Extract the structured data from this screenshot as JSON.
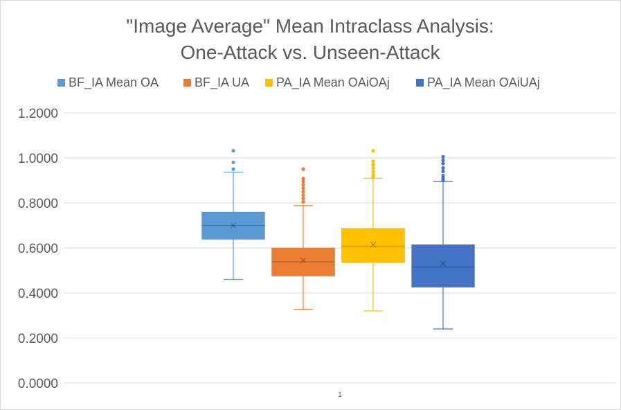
{
  "chart_data": {
    "type": "box",
    "title_lines": [
      "\"Image Average\" Mean Intraclass Analysis:",
      "One-Attack vs. Unseen-Attack"
    ],
    "xlabel": "",
    "ylabel": "",
    "categories": [
      "1"
    ],
    "ylim": [
      0,
      1.2
    ],
    "y_ticks": [
      "0.0000",
      "0.2000",
      "0.4000",
      "0.6000",
      "0.8000",
      "1.0000",
      "1.2000"
    ],
    "y_tick_values": [
      0,
      0.2,
      0.4,
      0.6,
      0.8,
      1.0,
      1.2
    ],
    "grid": true,
    "legend_position": "top",
    "series": [
      {
        "name": "BF_IA Mean OA",
        "color": "#5b9bd5",
        "whisker_low": 0.46,
        "q1": 0.638,
        "median": 0.7,
        "mean": 0.7,
        "q3": 0.76,
        "whisker_high": 0.937,
        "outliers": [
          0.95,
          0.98,
          1.032
        ]
      },
      {
        "name": "BF_IA UA",
        "color": "#ed7d31",
        "whisker_low": 0.327,
        "q1": 0.475,
        "median": 0.538,
        "mean": 0.545,
        "q3": 0.6,
        "whisker_high": 0.788,
        "outliers": [
          0.805,
          0.82,
          0.835,
          0.85,
          0.865,
          0.88,
          0.895,
          0.908,
          0.95
        ]
      },
      {
        "name": "PA_IA Mean OAiOAj",
        "color": "#ffc000",
        "whisker_low": 0.32,
        "q1": 0.535,
        "median": 0.608,
        "mean": 0.615,
        "q3": 0.687,
        "whisker_high": 0.91,
        "outliers": [
          0.915,
          0.925,
          0.94,
          0.955,
          0.97,
          0.985,
          1.032
        ]
      },
      {
        "name": "PA_IA Mean OAiUAj",
        "color": "#4472c4",
        "whisker_low": 0.24,
        "q1": 0.425,
        "median": 0.515,
        "mean": 0.53,
        "q3": 0.615,
        "whisker_high": 0.895,
        "outliers": [
          0.9,
          0.91,
          0.922,
          0.94,
          0.955,
          0.975,
          0.99,
          1.005
        ]
      }
    ]
  }
}
